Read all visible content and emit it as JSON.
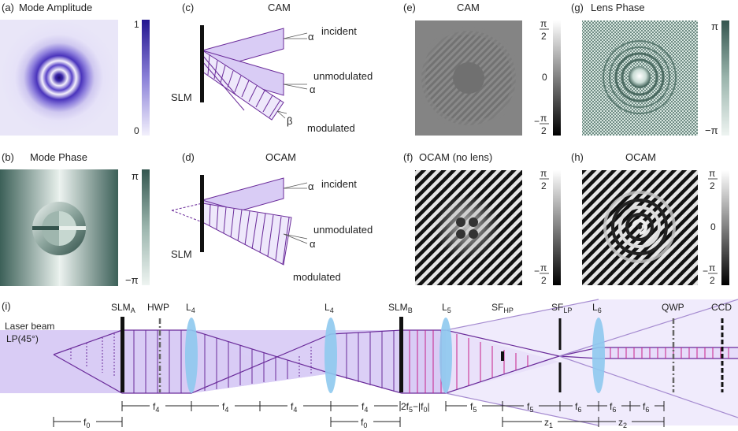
{
  "panels": {
    "a": {
      "label": "(a)",
      "title": "Mode Amplitude",
      "cb_max": "1",
      "cb_min": "0"
    },
    "b": {
      "label": "(b)",
      "title": "Mode Phase",
      "cb_max": "π",
      "cb_min": "−π"
    },
    "c": {
      "label": "(c)",
      "title": "CAM",
      "slm": "SLM",
      "incident": "incident",
      "unmodulated": "unmodulated",
      "modulated": "modulated",
      "alpha": "α",
      "beta": "β"
    },
    "d": {
      "label": "(d)",
      "title": "OCAM",
      "slm": "SLM",
      "incident": "incident",
      "unmodulated": "unmodulated",
      "modulated": "modulated",
      "alpha": "α"
    },
    "e": {
      "label": "(e)",
      "title": "CAM",
      "cb_num": "π",
      "cb_den": "2",
      "cb_mid": "0",
      "cb_neg": "−"
    },
    "f": {
      "label": "(f)",
      "title": "OCAM (no lens)",
      "cb_num": "π",
      "cb_den": "2",
      "cb_neg": "−"
    },
    "g": {
      "label": "(g)",
      "title": "Lens Phase",
      "cb_max": "π",
      "cb_min": "−π"
    },
    "h": {
      "label": "(h)",
      "title": "OCAM",
      "cb_num": "π",
      "cb_den": "2",
      "cb_mid": "0",
      "cb_neg": "−"
    }
  },
  "setup": {
    "label": "(i)",
    "laser_line1": "Laser beam",
    "laser_line2": "LP(45°)",
    "components": {
      "slm_a": {
        "main": "SLM",
        "sub": "A"
      },
      "hwp": "HWP",
      "l4a": {
        "main": "L",
        "sub": "4"
      },
      "l4b": {
        "main": "L",
        "sub": "4"
      },
      "slm_b": {
        "main": "SLM",
        "sub": "B"
      },
      "l5": {
        "main": "L",
        "sub": "5"
      },
      "sf_hp": {
        "main": "SF",
        "sub": "HP"
      },
      "sf_lp": {
        "main": "SF",
        "sub": "LP"
      },
      "l6": {
        "main": "L",
        "sub": "6"
      },
      "qwp": "QWP",
      "ccd": "CCD"
    },
    "distances": {
      "f4": {
        "main": "f",
        "sub": "4"
      },
      "f5": {
        "main": "f",
        "sub": "5"
      },
      "f6": {
        "main": "f",
        "sub": "6"
      },
      "f0": {
        "main": "f",
        "sub": "0"
      },
      "mixed": {
        "p1": "2f",
        "s1": "5",
        "p2": "−|f",
        "s2": "0",
        "p3": "|"
      },
      "z1": {
        "main": "z",
        "sub": "1"
      },
      "z2": {
        "main": "z",
        "sub": "2"
      }
    }
  },
  "colors": {
    "purple_fill": "#d9ccf5",
    "purple_line": "#6a2b9a",
    "magenta": "#c8208a",
    "lens_blue": "#8ec9ee",
    "amp_dark": "#2a1a90",
    "phase_dark": "#34564f",
    "phase_light": "#eaf1ee"
  }
}
